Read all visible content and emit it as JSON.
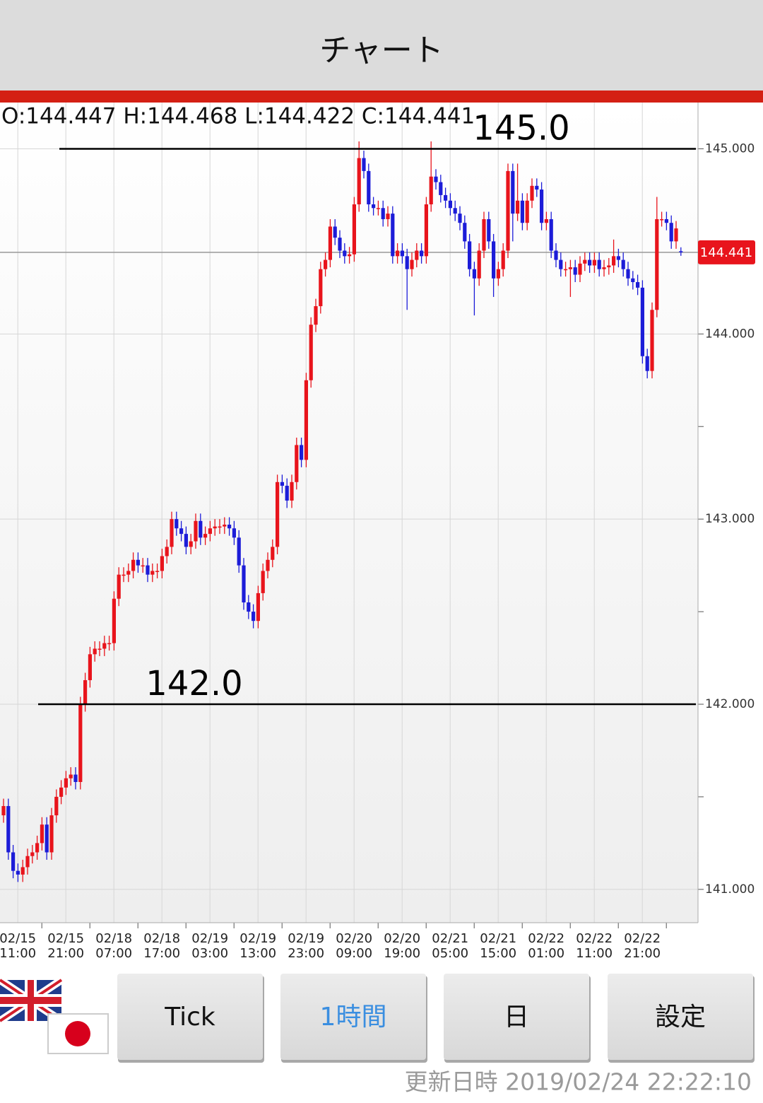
{
  "header": {
    "title": "チャート"
  },
  "chart_data": {
    "type": "candlestick",
    "ohlc_text": "O:144.447 H:144.468 L:144.422 C:144.441",
    "up_color": "#e8141c",
    "down_color": "#1c1cd8",
    "ylim": [
      140.82,
      145.25
    ],
    "yticks": [
      {
        "value": 141,
        "label": "141.000"
      },
      {
        "value": 142,
        "label": "142.000"
      },
      {
        "value": 143,
        "label": "143.000"
      },
      {
        "value": 144,
        "label": "144.000"
      },
      {
        "value": 145,
        "label": "145.000"
      }
    ],
    "yminor": [
      141.5,
      142.5,
      143.5,
      144.5
    ],
    "grid": true,
    "hlines": [
      {
        "value": 145,
        "label": "145.0"
      },
      {
        "value": 142,
        "label": "142.0"
      }
    ],
    "current_price": {
      "value": 144.441,
      "label": "144.441"
    },
    "x_labels": [
      {
        "date": "02/15",
        "time": "11:00"
      },
      {
        "date": "02/15",
        "time": "21:00"
      },
      {
        "date": "02/18",
        "time": "07:00"
      },
      {
        "date": "02/18",
        "time": "17:00"
      },
      {
        "date": "02/19",
        "time": "03:00"
      },
      {
        "date": "02/19",
        "time": "13:00"
      },
      {
        "date": "02/19",
        "time": "23:00"
      },
      {
        "date": "02/20",
        "time": "09:00"
      },
      {
        "date": "02/20",
        "time": "19:00"
      },
      {
        "date": "02/21",
        "time": "05:00"
      },
      {
        "date": "02/21",
        "time": "15:00"
      },
      {
        "date": "02/22",
        "time": "01:00"
      },
      {
        "date": "02/22",
        "time": "11:00"
      },
      {
        "date": "02/22",
        "time": "21:00"
      }
    ],
    "candles": [
      [
        141.4,
        141.49,
        141.36,
        141.45
      ],
      [
        141.45,
        141.49,
        141.16,
        141.2
      ],
      [
        141.2,
        141.24,
        141.06,
        141.1
      ],
      [
        141.1,
        141.14,
        141.04,
        141.08
      ],
      [
        141.08,
        141.16,
        141.04,
        141.12
      ],
      [
        141.12,
        141.22,
        141.08,
        141.18
      ],
      [
        141.18,
        141.24,
        141.14,
        141.2
      ],
      [
        141.2,
        141.29,
        141.16,
        141.25
      ],
      [
        141.25,
        141.39,
        141.21,
        141.35
      ],
      [
        141.35,
        141.39,
        141.16,
        141.2
      ],
      [
        141.2,
        141.44,
        141.16,
        141.4
      ],
      [
        141.4,
        141.54,
        141.36,
        141.5
      ],
      [
        141.5,
        141.59,
        141.46,
        141.55
      ],
      [
        141.55,
        141.64,
        141.51,
        141.6
      ],
      [
        141.6,
        141.66,
        141.56,
        141.62
      ],
      [
        141.62,
        141.66,
        141.54,
        141.58
      ],
      [
        141.58,
        142.04,
        141.54,
        142.0
      ],
      [
        142.0,
        142.17,
        141.96,
        142.13
      ],
      [
        142.13,
        142.31,
        142.09,
        142.27
      ],
      [
        142.27,
        142.34,
        142.23,
        142.3
      ],
      [
        142.3,
        142.34,
        142.26,
        142.3
      ],
      [
        142.3,
        142.37,
        142.26,
        142.33
      ],
      [
        142.33,
        142.37,
        142.29,
        142.33
      ],
      [
        142.33,
        142.61,
        142.29,
        142.57
      ],
      [
        142.57,
        142.74,
        142.53,
        142.7
      ],
      [
        142.7,
        142.74,
        142.66,
        142.7
      ],
      [
        142.7,
        142.76,
        142.66,
        142.72
      ],
      [
        142.72,
        142.82,
        142.68,
        142.78
      ],
      [
        142.78,
        142.82,
        142.71,
        142.75
      ],
      [
        142.75,
        142.79,
        142.71,
        142.75
      ],
      [
        142.75,
        142.79,
        142.66,
        142.7
      ],
      [
        142.7,
        142.76,
        142.66,
        142.72
      ],
      [
        142.72,
        142.76,
        142.68,
        142.72
      ],
      [
        142.72,
        142.84,
        142.68,
        142.8
      ],
      [
        142.8,
        142.89,
        142.76,
        142.85
      ],
      [
        142.85,
        143.04,
        142.81,
        143.0
      ],
      [
        143.0,
        143.04,
        142.91,
        142.95
      ],
      [
        142.95,
        142.99,
        142.88,
        142.92
      ],
      [
        142.92,
        142.96,
        142.81,
        142.85
      ],
      [
        142.85,
        142.92,
        142.81,
        142.88
      ],
      [
        142.88,
        143.03,
        142.84,
        142.99
      ],
      [
        142.99,
        143.03,
        142.86,
        142.9
      ],
      [
        142.9,
        142.96,
        142.86,
        142.92
      ],
      [
        142.92,
        142.99,
        142.88,
        142.95
      ],
      [
        142.95,
        143.0,
        142.91,
        142.96
      ],
      [
        142.96,
        143.0,
        142.92,
        142.96
      ],
      [
        142.96,
        143.01,
        142.92,
        142.97
      ],
      [
        142.97,
        143.01,
        142.91,
        142.95
      ],
      [
        142.95,
        142.99,
        142.86,
        142.9
      ],
      [
        142.9,
        142.94,
        142.71,
        142.75
      ],
      [
        142.75,
        142.79,
        142.51,
        142.55
      ],
      [
        142.55,
        142.59,
        142.46,
        142.5
      ],
      [
        142.5,
        142.54,
        142.41,
        142.45
      ],
      [
        142.45,
        142.64,
        142.41,
        142.6
      ],
      [
        142.6,
        142.76,
        142.56,
        142.72
      ],
      [
        142.72,
        142.82,
        142.68,
        142.78
      ],
      [
        142.78,
        142.89,
        142.74,
        142.85
      ],
      [
        142.85,
        143.24,
        142.81,
        143.2
      ],
      [
        143.2,
        143.24,
        143.14,
        143.18
      ],
      [
        143.18,
        143.22,
        143.06,
        143.1
      ],
      [
        143.1,
        143.24,
        143.06,
        143.2
      ],
      [
        143.2,
        143.44,
        143.16,
        143.4
      ],
      [
        143.4,
        143.44,
        143.28,
        143.32
      ],
      [
        143.32,
        143.79,
        143.28,
        143.75
      ],
      [
        143.75,
        144.09,
        143.71,
        144.05
      ],
      [
        144.05,
        144.19,
        144.01,
        144.15
      ],
      [
        144.15,
        144.39,
        144.11,
        144.35
      ],
      [
        144.35,
        144.44,
        144.31,
        144.4
      ],
      [
        144.4,
        144.62,
        144.36,
        144.58
      ],
      [
        144.58,
        144.62,
        144.48,
        144.52
      ],
      [
        144.52,
        144.56,
        144.41,
        144.45
      ],
      [
        144.45,
        144.49,
        144.38,
        144.42
      ],
      [
        144.42,
        144.47,
        144.38,
        144.43
      ],
      [
        144.43,
        144.74,
        144.39,
        144.7
      ],
      [
        144.7,
        145.04,
        144.66,
        144.95
      ],
      [
        144.95,
        144.99,
        144.84,
        144.88
      ],
      [
        144.88,
        144.92,
        144.66,
        144.7
      ],
      [
        144.7,
        144.74,
        144.64,
        144.68
      ],
      [
        144.68,
        144.72,
        144.64,
        144.68
      ],
      [
        144.68,
        144.72,
        144.58,
        144.62
      ],
      [
        144.62,
        144.69,
        144.58,
        144.65
      ],
      [
        144.65,
        144.69,
        144.38,
        144.42
      ],
      [
        144.42,
        144.49,
        144.38,
        144.45
      ],
      [
        144.45,
        144.49,
        144.38,
        144.42
      ],
      [
        144.42,
        144.46,
        144.13,
        144.35
      ],
      [
        144.35,
        144.44,
        144.31,
        144.4
      ],
      [
        144.4,
        144.49,
        144.36,
        144.45
      ],
      [
        144.45,
        144.49,
        144.38,
        144.42
      ],
      [
        144.42,
        144.74,
        144.38,
        144.7
      ],
      [
        144.7,
        145.04,
        144.66,
        144.85
      ],
      [
        144.85,
        144.89,
        144.78,
        144.82
      ],
      [
        144.82,
        144.86,
        144.71,
        144.75
      ],
      [
        144.75,
        144.79,
        144.68,
        144.72
      ],
      [
        144.72,
        144.76,
        144.64,
        144.68
      ],
      [
        144.68,
        144.72,
        144.61,
        144.65
      ],
      [
        144.65,
        144.69,
        144.56,
        144.6
      ],
      [
        144.6,
        144.64,
        144.46,
        144.5
      ],
      [
        144.5,
        144.54,
        144.31,
        144.35
      ],
      [
        144.35,
        144.39,
        144.1,
        144.3
      ],
      [
        144.3,
        144.49,
        144.26,
        144.45
      ],
      [
        144.45,
        144.66,
        144.41,
        144.62
      ],
      [
        144.62,
        144.66,
        144.46,
        144.5
      ],
      [
        144.5,
        144.54,
        144.2,
        144.3
      ],
      [
        144.3,
        144.39,
        144.26,
        144.35
      ],
      [
        144.35,
        144.49,
        144.31,
        144.45
      ],
      [
        144.45,
        144.92,
        144.41,
        144.88
      ],
      [
        144.88,
        144.92,
        144.5,
        144.65
      ],
      [
        144.65,
        144.92,
        144.61,
        144.72
      ],
      [
        144.72,
        144.76,
        144.56,
        144.6
      ],
      [
        144.6,
        144.76,
        144.56,
        144.72
      ],
      [
        144.72,
        144.84,
        144.68,
        144.8
      ],
      [
        144.8,
        144.84,
        144.74,
        144.78
      ],
      [
        144.78,
        144.82,
        144.56,
        144.6
      ],
      [
        144.6,
        144.66,
        144.56,
        144.62
      ],
      [
        144.62,
        144.66,
        144.41,
        144.45
      ],
      [
        144.45,
        144.49,
        144.36,
        144.4
      ],
      [
        144.4,
        144.44,
        144.31,
        144.35
      ],
      [
        144.35,
        144.39,
        144.31,
        144.35
      ],
      [
        144.35,
        144.4,
        144.2,
        144.36
      ],
      [
        144.36,
        144.4,
        144.28,
        144.32
      ],
      [
        144.32,
        144.42,
        144.28,
        144.38
      ],
      [
        144.38,
        144.44,
        144.34,
        144.4
      ],
      [
        144.4,
        144.44,
        144.33,
        144.37
      ],
      [
        144.37,
        144.44,
        144.33,
        144.4
      ],
      [
        144.4,
        144.44,
        144.31,
        144.35
      ],
      [
        144.35,
        144.4,
        144.31,
        144.36
      ],
      [
        144.36,
        144.41,
        144.32,
        144.37
      ],
      [
        144.37,
        144.51,
        144.33,
        144.42
      ],
      [
        144.42,
        144.46,
        144.36,
        144.4
      ],
      [
        144.4,
        144.44,
        144.31,
        144.35
      ],
      [
        144.35,
        144.39,
        144.26,
        144.3
      ],
      [
        144.3,
        144.34,
        144.24,
        144.28
      ],
      [
        144.28,
        144.32,
        144.21,
        144.25
      ],
      [
        144.25,
        144.29,
        143.84,
        143.88
      ],
      [
        143.88,
        143.92,
        143.76,
        143.8
      ],
      [
        143.8,
        144.17,
        143.76,
        144.13
      ],
      [
        144.13,
        144.74,
        144.09,
        144.62
      ],
      [
        144.62,
        144.66,
        144.58,
        144.62
      ],
      [
        144.62,
        144.66,
        144.56,
        144.6
      ],
      [
        144.6,
        144.64,
        144.46,
        144.5
      ],
      [
        144.5,
        144.61,
        144.46,
        144.57
      ],
      [
        144.447,
        144.468,
        144.422,
        144.441
      ]
    ]
  },
  "buttons": [
    "Tick",
    "1時間",
    "日",
    "設定"
  ],
  "footer": {
    "updated": "更新日時 2019/02/24 22:22:10"
  }
}
